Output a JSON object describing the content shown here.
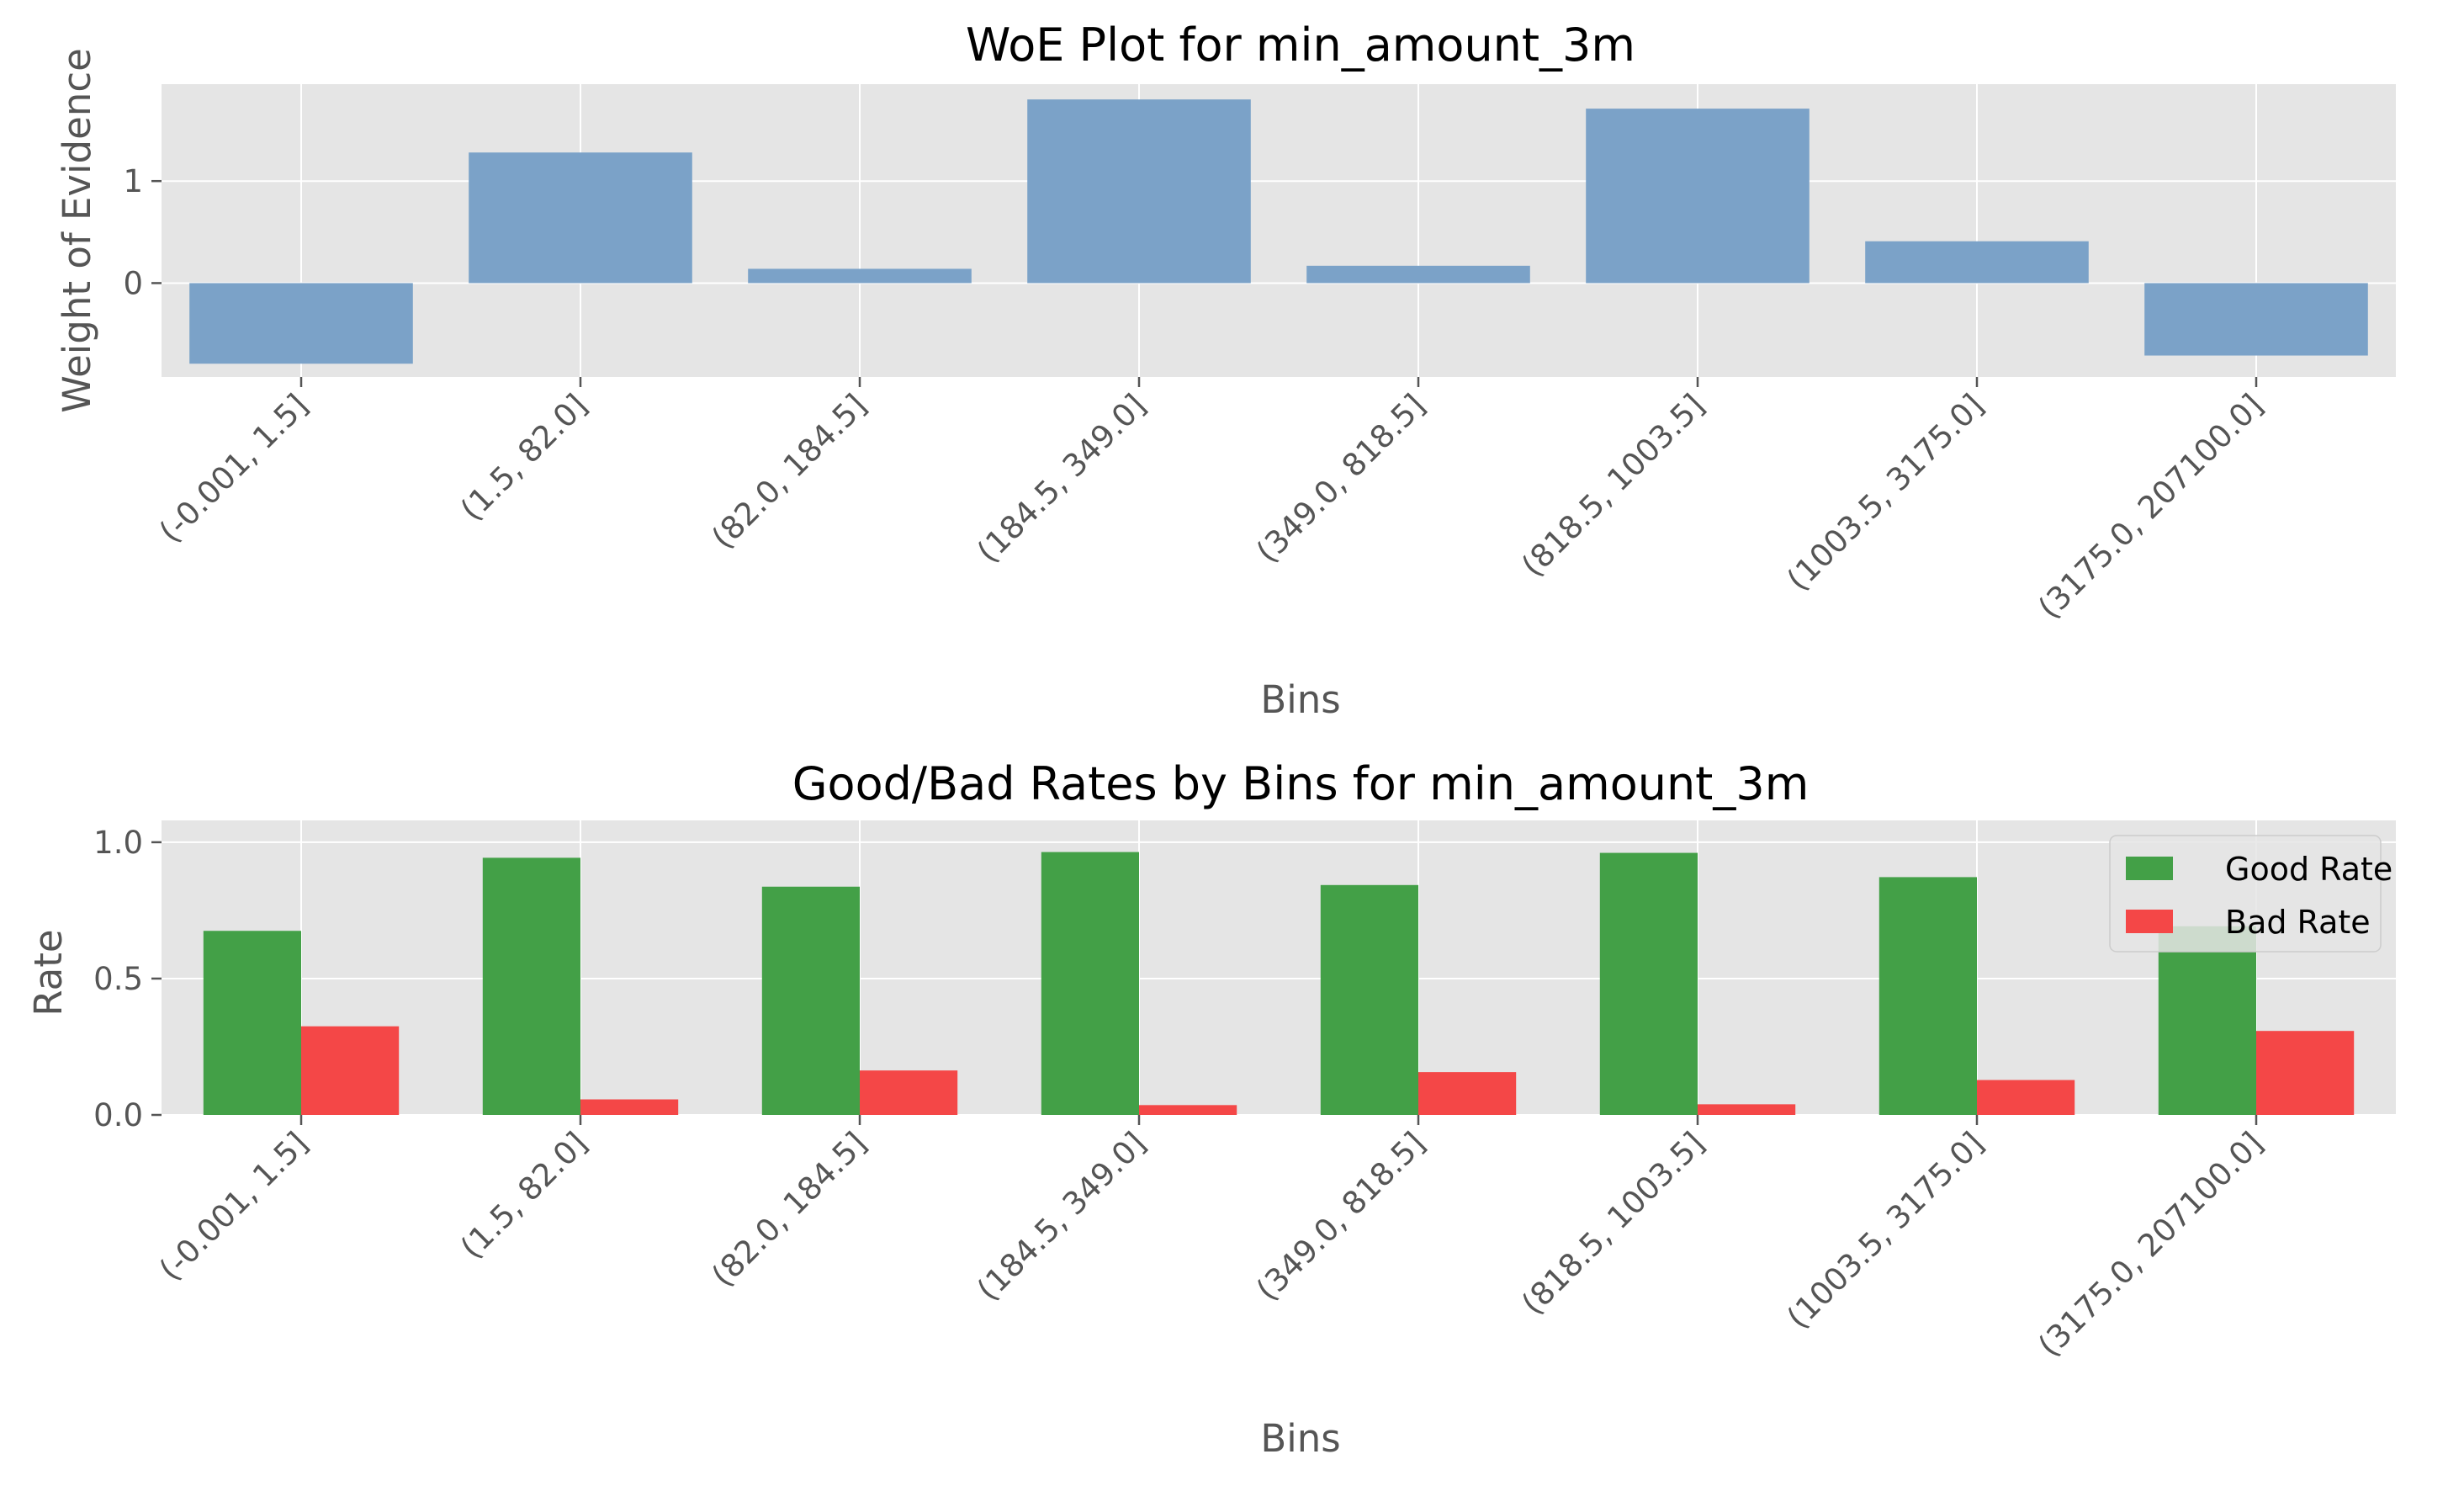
{
  "chart_data": [
    {
      "type": "bar",
      "title": "WoE Plot for min_amount_3m",
      "xlabel": "Bins",
      "ylabel": "Weight of Evidence",
      "categories": [
        "(-0.001, 1.5]",
        "(1.5, 82.0]",
        "(82.0, 184.5]",
        "(184.5, 349.0]",
        "(349.0, 818.5]",
        "(818.5, 1003.5]",
        "(1003.5, 3175.0]",
        "(3175.0, 207100.0]"
      ],
      "values": [
        -0.79,
        1.28,
        0.14,
        1.8,
        0.17,
        1.71,
        0.41,
        -0.71
      ],
      "ylim": [
        -0.92,
        1.95
      ],
      "yticks": [
        0,
        1
      ],
      "grid": true,
      "colors": {
        "bar": "#7ba2c8"
      }
    },
    {
      "type": "bar",
      "title": "Good/Bad Rates by Bins for min_amount_3m",
      "xlabel": "Bins",
      "ylabel": "Rate",
      "categories": [
        "(-0.001, 1.5]",
        "(1.5, 82.0]",
        "(82.0, 184.5]",
        "(184.5, 349.0]",
        "(349.0, 818.5]",
        "(818.5, 1003.5]",
        "(1003.5, 3175.0]",
        "(3175.0, 207100.0]"
      ],
      "series": [
        {
          "name": "Good Rate",
          "color": "#43a047",
          "values": [
            0.675,
            0.943,
            0.837,
            0.964,
            0.843,
            0.961,
            0.872,
            0.692
          ]
        },
        {
          "name": "Bad Rate",
          "color": "#f44747",
          "values": [
            0.325,
            0.057,
            0.163,
            0.036,
            0.157,
            0.039,
            0.128,
            0.308
          ]
        }
      ],
      "ylim": [
        0,
        1.0
      ],
      "yticks": [
        0.0,
        0.5,
        1.0
      ],
      "ytick_labels": [
        "0.0",
        "0.5",
        "1.0"
      ],
      "grid": true,
      "legend": "top-right"
    }
  ]
}
